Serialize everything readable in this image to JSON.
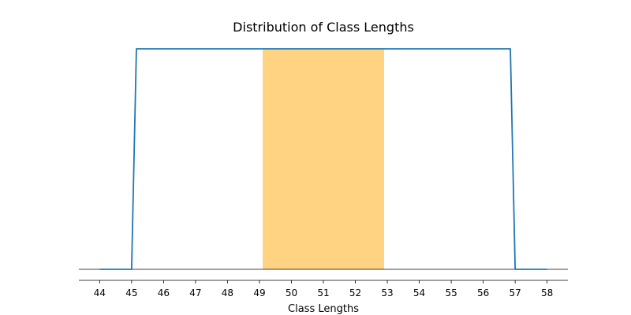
{
  "chart_data": {
    "type": "line",
    "title": "Distribution of Class Lengths",
    "xlabel": "Class Lengths",
    "ylabel": "",
    "xlim": [
      43.35,
      58.65
    ],
    "ylim": [
      -0.05,
      1.05
    ],
    "x_ticks": [
      44,
      45,
      46,
      47,
      48,
      49,
      50,
      51,
      52,
      53,
      54,
      55,
      56,
      57,
      58
    ],
    "y_ticks": [],
    "grid": false,
    "legend": "none",
    "series": [
      {
        "color": "#1f77b4",
        "x": [
          44,
          45,
          45.15,
          56.85,
          57,
          58
        ],
        "y": [
          0,
          0,
          1,
          1,
          0,
          0
        ]
      }
    ],
    "shaded_region": {
      "x_start": 49.1,
      "x_end": 52.9,
      "color": "#ffc04d",
      "opacity": 0.7
    },
    "baseline_y": 0
  }
}
